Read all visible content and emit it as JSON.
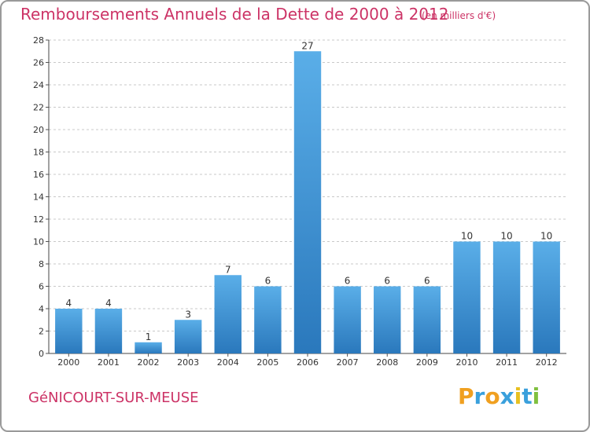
{
  "header": {
    "title": "Remboursements Annuels de la Dette de 2000 à 2012",
    "subtitle": "(en milliers d'€)"
  },
  "footer": {
    "commune": "GéNICOURT-SUR-MEUSE",
    "brand_letters": [
      "P",
      "r",
      "o",
      "x",
      "i",
      "t",
      "i"
    ],
    "brand_colors": [
      "#f0a020",
      "#3aa0dc",
      "#f0a020",
      "#3aa0dc",
      "#e8c020",
      "#3aa0dc",
      "#80c040"
    ]
  },
  "chart_data": {
    "type": "bar",
    "categories": [
      "2000",
      "2001",
      "2002",
      "2003",
      "2004",
      "2005",
      "2006",
      "2007",
      "2008",
      "2009",
      "2010",
      "2011",
      "2012"
    ],
    "values": [
      4,
      4,
      1,
      3,
      7,
      6,
      27,
      6,
      6,
      6,
      10,
      10,
      10
    ],
    "ylim": [
      0,
      28
    ],
    "yticks": [
      0,
      2,
      4,
      6,
      8,
      10,
      12,
      14,
      16,
      18,
      20,
      22,
      24,
      26,
      28
    ],
    "grid": true,
    "bar_color": "#3d94d8",
    "bar_color_light": "#5aaee8",
    "bar_color_dark": "#2a78bc"
  }
}
